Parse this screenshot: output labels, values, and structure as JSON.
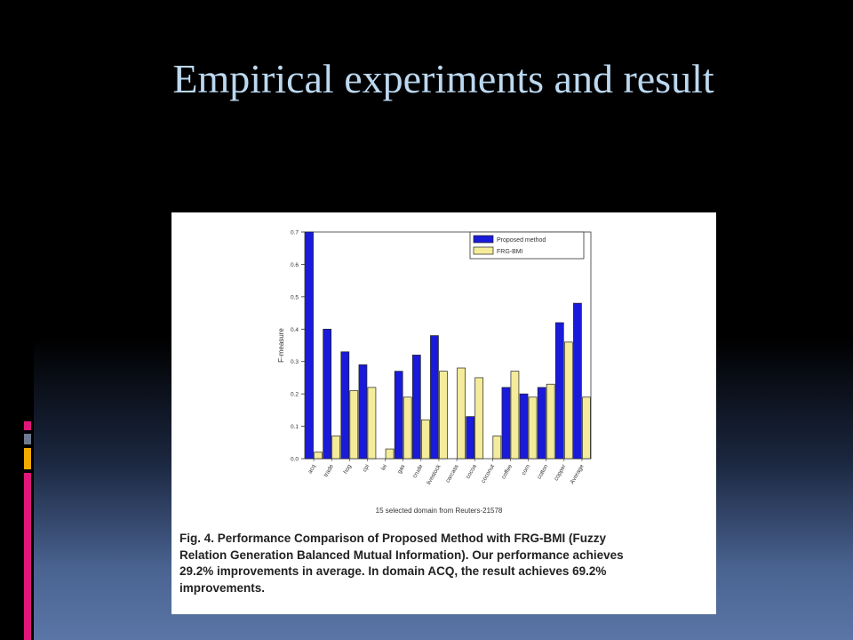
{
  "slide": {
    "title": "Empirical experiments  and result"
  },
  "decor": {
    "bars": [
      {
        "color": "#e0177a"
      },
      {
        "color": "#6b7a8f"
      },
      {
        "color": "#f2a900"
      },
      {
        "color": "#e0177a"
      }
    ]
  },
  "figure": {
    "caption_lines": [
      "Fig. 4.   Performance Comparison of Proposed Method with FRG-BMI (Fuzzy",
      "Relation Generation Balanced Mutual Information). Our performance achieves",
      "29.2% improvements in average. In domain ACQ, the result achieves 69.2%",
      "improvements."
    ]
  },
  "chart_data": {
    "type": "bar",
    "title": "",
    "xlabel": "15 selected domain from Reuters-21578",
    "ylabel": "F-measure",
    "ylim": [
      0,
      0.7
    ],
    "yticks": [
      "0.0",
      "0.1",
      "0.2",
      "0.3",
      "0.4",
      "0.5",
      "0.6",
      "0.7"
    ],
    "categories": [
      "acq",
      "trade",
      "hog",
      "cpi",
      "lei",
      "gas",
      "crude",
      "livestock",
      "carcass",
      "cocoa",
      "coconut",
      "coffee",
      "corn",
      "cotton",
      "copper",
      "Average"
    ],
    "series": [
      {
        "name": "Proposed method",
        "color": "#1a1adb",
        "values": [
          0.7,
          0.4,
          0.33,
          0.29,
          0.0,
          0.27,
          0.32,
          0.38,
          0.0,
          0.13,
          0.0,
          0.22,
          0.2,
          0.22,
          0.42,
          0.48
        ]
      },
      {
        "name": "FRG-BMI",
        "color": "#f4ec9a",
        "values": [
          0.02,
          0.07,
          0.21,
          0.22,
          0.03,
          0.19,
          0.12,
          0.27,
          0.28,
          0.25,
          0.07,
          0.27,
          0.19,
          0.23,
          0.36,
          0.19
        ]
      }
    ],
    "legend_position": "top-right",
    "grid": false
  }
}
